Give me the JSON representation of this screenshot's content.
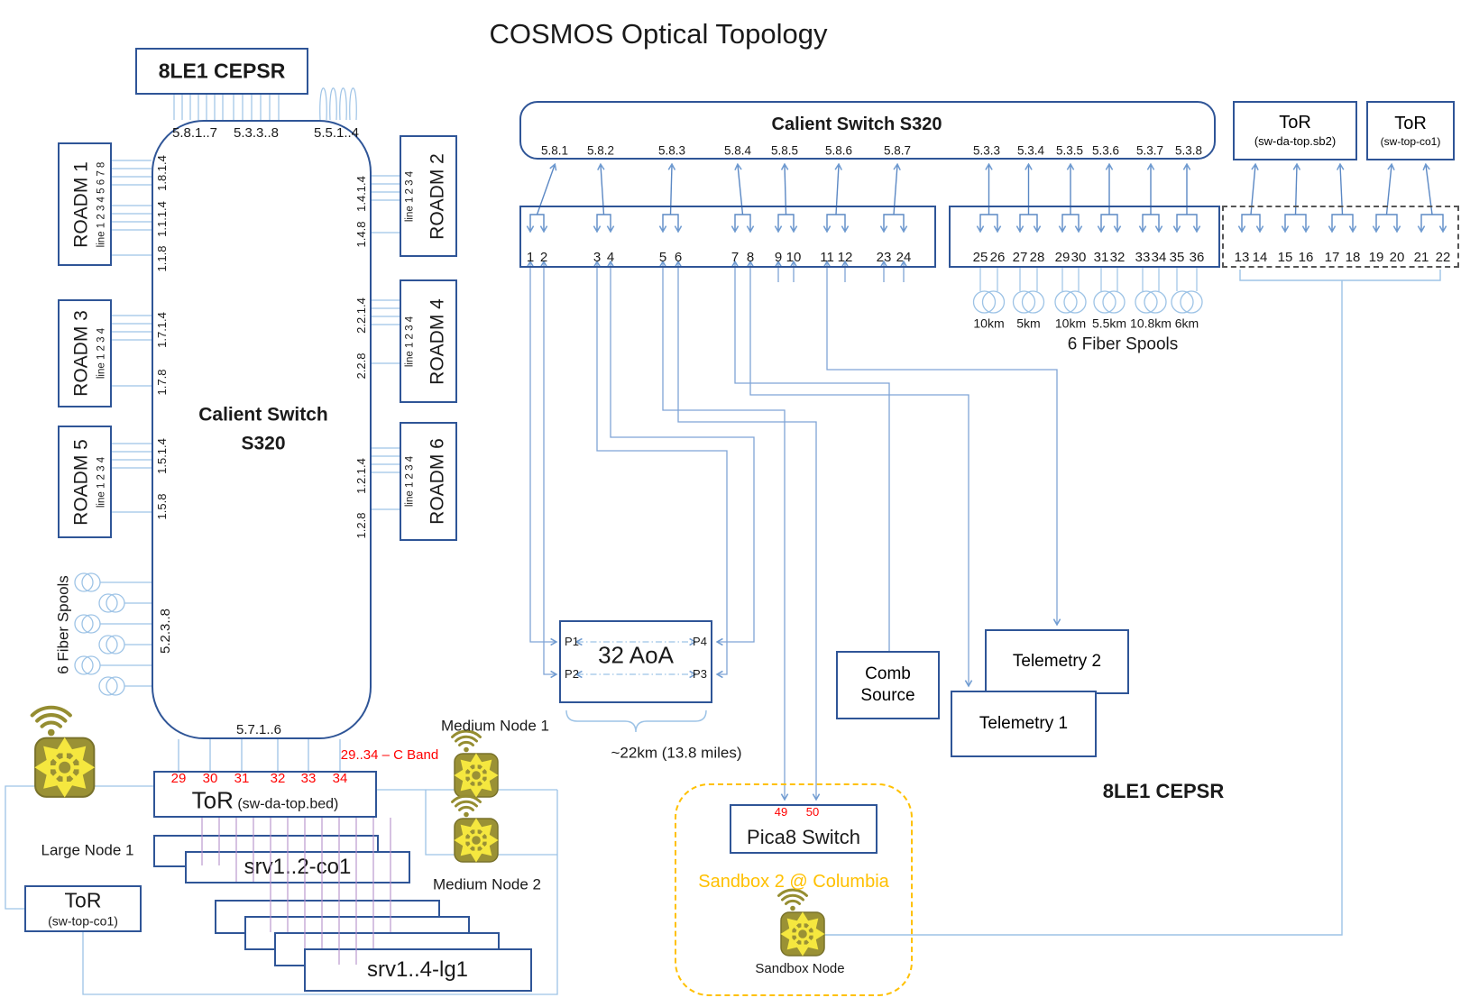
{
  "title": "COSMOS Optical Topology",
  "left_switch": {
    "cepsr": "8LE1 CEPSR",
    "name_l1": "Calient Switch",
    "name_l2": "S320",
    "top_ports": [
      "5.8.1..7",
      "5.3.3..8",
      "5.5.1..4"
    ],
    "bottom_ports": "5.7.1..6",
    "spools_label": "6 Fiber Spools",
    "spools_port": "5.2.3..8",
    "roadms_left": [
      {
        "name": "ROADM 1",
        "ports": "line 1 2 3 4    5 6 7 8",
        "switch_labels": [
          "1.8.1.4",
          "1.1.1.4",
          "1.1.8"
        ]
      },
      {
        "name": "ROADM 3",
        "ports": "line 1 2 3 4",
        "switch_labels": [
          "1.7.1.4",
          "1.7.8"
        ]
      },
      {
        "name": "ROADM 5",
        "ports": "line 1 2 3 4",
        "switch_labels": [
          "1.5.1.4",
          "1.5.8"
        ]
      }
    ],
    "roadms_right": [
      {
        "name": "ROADM 2",
        "ports": "line 1 2 3 4",
        "switch_labels": [
          "1.4.1.4",
          "1.4.8"
        ]
      },
      {
        "name": "ROADM 4",
        "ports": "line 1 2 3 4",
        "switch_labels": [
          "2.2.1.4",
          "2.2.8"
        ]
      },
      {
        "name": "ROADM 6",
        "ports": "line 1 2 3 4",
        "switch_labels": [
          "1.2.1.4",
          "1.2.8"
        ]
      }
    ]
  },
  "right_switch": {
    "name": "Calient Switch S320",
    "ports_58": [
      "5.8.1",
      "5.8.2",
      "5.8.3",
      "5.8.4",
      "5.8.5",
      "5.8.6",
      "5.8.7"
    ],
    "ports_53": [
      "5.3.3",
      "5.3.4",
      "5.3.5",
      "5.3.6",
      "5.3.7",
      "5.3.8"
    ]
  },
  "patch_panel": {
    "bank1_pairs": [
      [
        "1",
        "2"
      ],
      [
        "3",
        "4"
      ],
      [
        "5",
        "6"
      ],
      [
        "7",
        "8"
      ],
      [
        "9",
        "10"
      ],
      [
        "11",
        "12"
      ],
      [
        "23",
        "24"
      ]
    ],
    "bank2_pairs": [
      [
        "25",
        "26"
      ],
      [
        "27",
        "28"
      ],
      [
        "29",
        "30"
      ],
      [
        "31",
        "32"
      ],
      [
        "33",
        "34"
      ],
      [
        "35",
        "36"
      ]
    ],
    "dashed_pairs": [
      [
        "13",
        "14"
      ],
      [
        "15",
        "16"
      ],
      [
        "17",
        "18"
      ],
      [
        "19",
        "20"
      ],
      [
        "21",
        "22"
      ]
    ]
  },
  "fiber_spools": {
    "lengths": [
      "10km",
      "5km",
      "10km",
      "5.5km",
      "10.8km",
      "6km"
    ],
    "label": "6 Fiber Spools"
  },
  "tor_sb2": {
    "name": "ToR",
    "sub": "(sw-da-top.sb2)"
  },
  "tor_co1_top": {
    "name": "ToR",
    "sub": "(sw-top-co1)"
  },
  "aoa": {
    "name": "32 AoA",
    "p1": "P1",
    "p2": "P2",
    "p3": "P3",
    "p4": "P4",
    "distance": "~22km (13.8 miles)"
  },
  "comb": {
    "l1": "Comb",
    "l2": "Source"
  },
  "telemetry1": "Telemetry 1",
  "telemetry2": "Telemetry 2",
  "pica8": {
    "name": "Pica8 Switch",
    "ports": [
      "49",
      "50"
    ]
  },
  "sandbox": {
    "title": "Sandbox 2 @ Columbia",
    "node": "Sandbox Node",
    "site_label": "8LE1 CEPSR"
  },
  "bottom": {
    "tor_bed": {
      "name": "ToR",
      "sub": "(sw-da-top.bed)",
      "ports": [
        "29",
        "30",
        "31",
        "32",
        "33",
        "34"
      ],
      "note": "29..34 – C Band"
    },
    "tor_co1": {
      "name": "ToR",
      "sub": "(sw-top-co1)"
    },
    "large_node": "Large Node 1",
    "medium_node1": "Medium Node 1",
    "medium_node2": "Medium Node 2",
    "srv_co1": "srv1..2-co1",
    "srv_lg1": "srv1..4-lg1"
  }
}
